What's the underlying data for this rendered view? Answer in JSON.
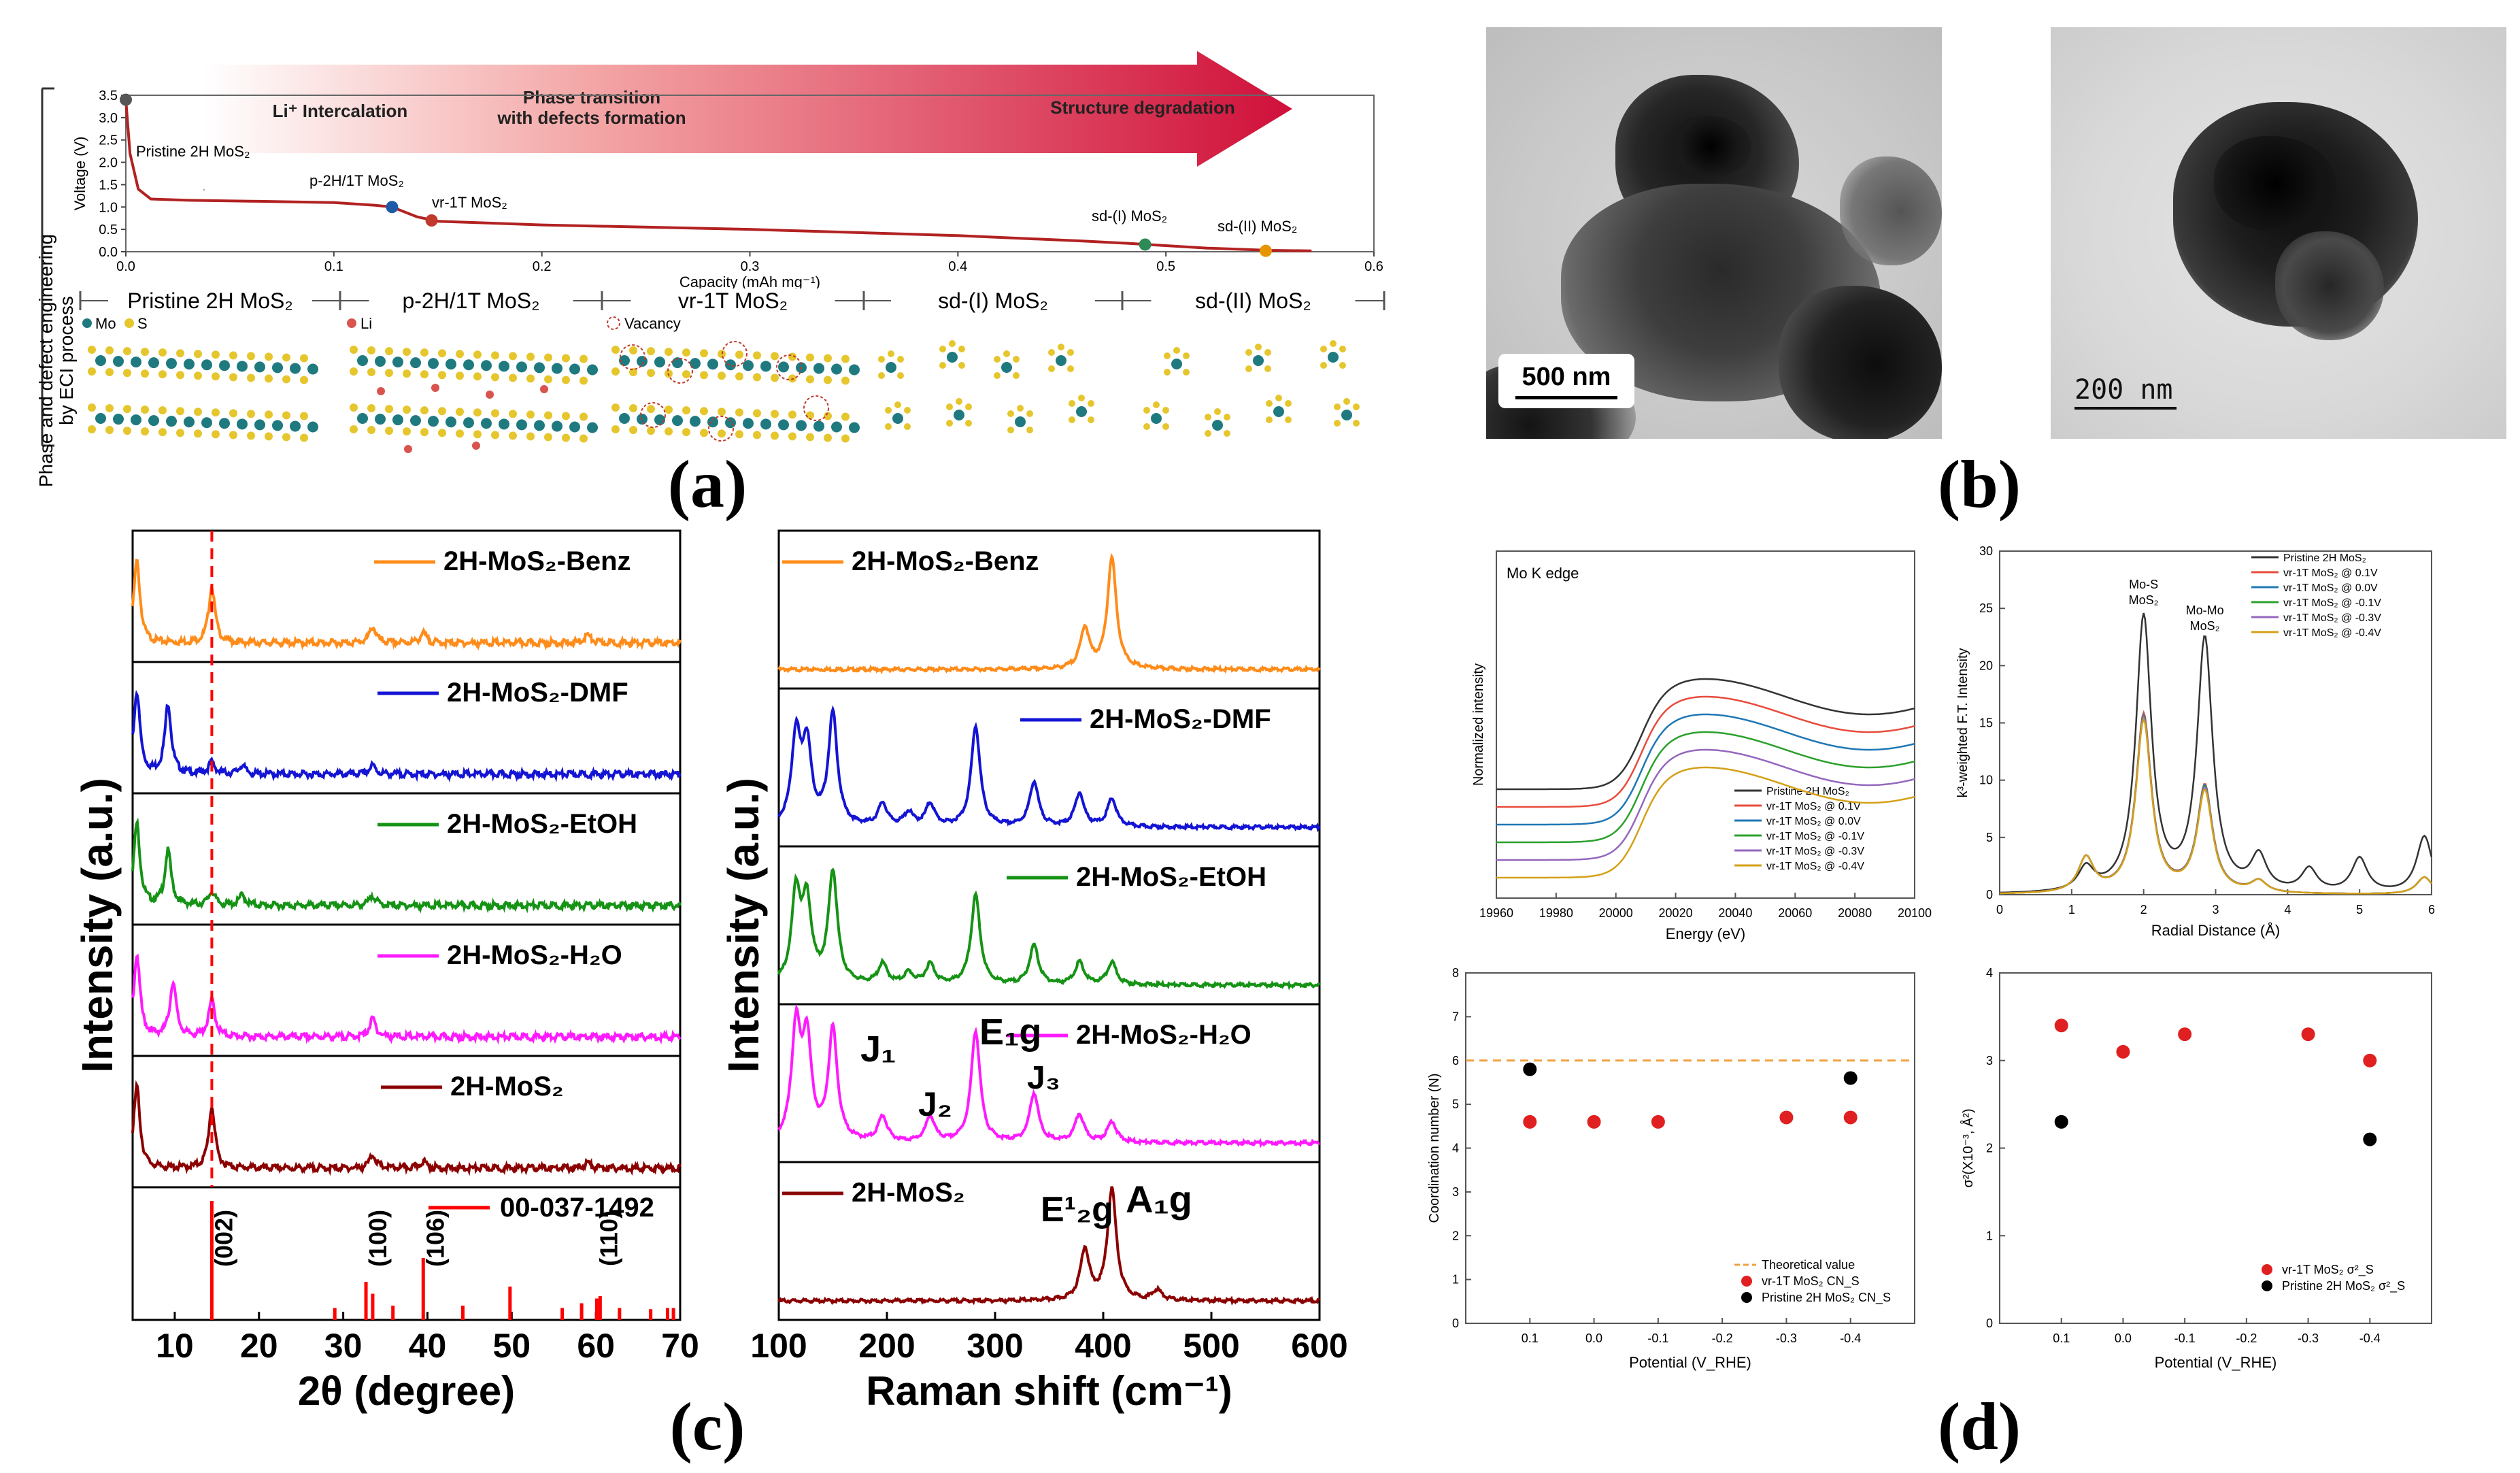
{
  "labels": {
    "a": "(a)",
    "b": "(b)",
    "c": "(c)",
    "d": "(d)"
  },
  "panel_a": {
    "side_label_1": "Phase and defect engineering",
    "side_label_2": "by ECI process",
    "arrow": {
      "stage1": "Li⁺ Intercalation",
      "stage2_l1": "Phase transition",
      "stage2_l2": "with defects formation",
      "stage3": "Structure degradation"
    },
    "annotations": {
      "pristine": "Pristine 2H MoS₂",
      "p2h1t": "p-2H/1T MoS₂",
      "vr1t": "vr-1T MoS₂",
      "sd1": "sd-(I) MoS₂",
      "sd2": "sd-(II) MoS₂"
    },
    "phases": [
      "Pristine 2H MoS₂",
      "p-2H/1T MoS₂",
      "vr-1T MoS₂",
      "sd-(I) MoS₂",
      "sd-(II) MoS₂"
    ],
    "legend": {
      "mo": "Mo",
      "s": "S",
      "li": "Li",
      "vac": "Vacancy"
    },
    "colors": {
      "mo": "#1f7a80",
      "s": "#e6c62d",
      "li": "#d9534f",
      "curve": "#b22222"
    }
  },
  "panel_b": {
    "scale1": "500 nm",
    "scale2": "200 nm"
  },
  "chart_data": [
    {
      "id": "voltage-profile",
      "type": "line",
      "xlabel": "Capacity (mAh mg⁻¹)",
      "ylabel": "Voltage (V)",
      "xlim": [
        0,
        0.6
      ],
      "ylim": [
        0,
        3.5
      ],
      "xticks": [
        "0.0",
        "0.1",
        "0.2",
        "0.3",
        "0.4",
        "0.5",
        "0.6"
      ],
      "yticks": [
        "0.0",
        "0.5",
        "1.0",
        "1.5",
        "2.0",
        "2.5",
        "3.0",
        "3.5"
      ],
      "series": [
        {
          "name": "voltage",
          "x": [
            0,
            0.002,
            0.006,
            0.012,
            0.03,
            0.06,
            0.1,
            0.12,
            0.128,
            0.14,
            0.15,
            0.2,
            0.3,
            0.4,
            0.46,
            0.485,
            0.52,
            0.55,
            0.57
          ],
          "y": [
            3.4,
            2.2,
            1.4,
            1.18,
            1.15,
            1.13,
            1.1,
            1.04,
            1.0,
            0.78,
            0.68,
            0.6,
            0.5,
            0.36,
            0.24,
            0.18,
            0.08,
            0.03,
            0.02
          ]
        }
      ],
      "markers": [
        {
          "x": 0.0,
          "y": 3.4,
          "color": "#555555"
        },
        {
          "x": 0.128,
          "y": 1.0,
          "color": "#1f5aa6"
        },
        {
          "x": 0.147,
          "y": 0.7,
          "color": "#c0392b"
        },
        {
          "x": 0.49,
          "y": 0.16,
          "color": "#2e8b57"
        },
        {
          "x": 0.548,
          "y": 0.02,
          "color": "#e69500"
        }
      ]
    },
    {
      "id": "xrd",
      "type": "line",
      "xlabel": "2θ (degree)",
      "ylabel": "Intensity (a.u.)",
      "xlim": [
        5,
        70
      ],
      "xticks": [
        "10",
        "20",
        "30",
        "40",
        "50",
        "60",
        "70"
      ],
      "dashed_line_at": 14.4,
      "series": [
        {
          "name": "2H-MoS₂-Benz",
          "color": "#ff8c1a",
          "peaks": [
            [
              5.5,
              10
            ],
            [
              14.4,
              7
            ],
            [
              33.5,
              2
            ],
            [
              39.5,
              1.2
            ],
            [
              59,
              1
            ]
          ]
        },
        {
          "name": "2H-MoS₂-DMF",
          "color": "#1414d4",
          "peaks": [
            [
              5.5,
              14
            ],
            [
              9.2,
              12
            ],
            [
              14.4,
              2
            ],
            [
              18,
              1.5
            ],
            [
              33.5,
              1.5
            ]
          ]
        },
        {
          "name": "2H-MoS₂-EtOH",
          "color": "#159315",
          "peaks": [
            [
              5.5,
              12
            ],
            [
              9.2,
              8
            ],
            [
              14.4,
              2
            ],
            [
              18,
              1.5
            ],
            [
              33.5,
              1.5
            ]
          ]
        },
        {
          "name": "2H-MoS₂-H₂O",
          "color": "#ff1aff",
          "peaks": [
            [
              5.5,
              9
            ],
            [
              9.8,
              6
            ],
            [
              14.4,
              4
            ],
            [
              33.5,
              2
            ]
          ]
        },
        {
          "name": "2H-MoS₂",
          "color": "#8b0000",
          "peaks": [
            [
              5.5,
              12
            ],
            [
              14.4,
              9
            ],
            [
              33.5,
              2
            ],
            [
              39.5,
              1
            ],
            [
              59,
              0.8
            ]
          ]
        }
      ],
      "reference": {
        "name": "00-037-1492",
        "color": "#ff0000",
        "x": [
          14.4,
          29,
          32.7,
          33.5,
          35.9,
          39.5,
          44.2,
          49.8,
          56,
          58.3,
          60.1,
          60.5,
          62.8,
          66.5,
          68.5,
          69.2
        ],
        "h": [
          1.0,
          0.1,
          0.32,
          0.22,
          0.12,
          0.52,
          0.12,
          0.28,
          0.1,
          0.14,
          0.18,
          0.2,
          0.1,
          0.09,
          0.1,
          0.1
        ],
        "hkl": [
          {
            "x": 14.4,
            "label": "(002)"
          },
          {
            "x": 32.7,
            "label": "(100)"
          },
          {
            "x": 39.5,
            "label": "(106)"
          },
          {
            "x": 60.1,
            "label": "(110)"
          }
        ]
      }
    },
    {
      "id": "raman",
      "type": "line",
      "xlabel": "Raman shift (cm⁻¹)",
      "ylabel": "Intensity (a.u.)",
      "xlim": [
        100,
        600
      ],
      "xticks": [
        "100",
        "200",
        "300",
        "400",
        "500",
        "600"
      ],
      "series": [
        {
          "name": "2H-MoS₂-Benz",
          "color": "#ff8c1a",
          "peaks": [
            [
              383,
              4
            ],
            [
              408,
              11
            ]
          ]
        },
        {
          "name": "2H-MoS₂-DMF",
          "color": "#1414d4",
          "peaks": [
            [
              116,
              8
            ],
            [
              126,
              7
            ],
            [
              150,
              10
            ],
            [
              196,
              2
            ],
            [
              220,
              1.2
            ],
            [
              240,
              2
            ],
            [
              282,
              9
            ],
            [
              336,
              4
            ],
            [
              378,
              3
            ],
            [
              408,
              2.5
            ]
          ]
        },
        {
          "name": "2H-MoS₂-EtOH",
          "color": "#159315",
          "peaks": [
            [
              116,
              8
            ],
            [
              126,
              7
            ],
            [
              150,
              10
            ],
            [
              196,
              1.8
            ],
            [
              220,
              1
            ],
            [
              240,
              1.8
            ],
            [
              282,
              8
            ],
            [
              336,
              3.5
            ],
            [
              378,
              2
            ],
            [
              408,
              2
            ]
          ]
        },
        {
          "name": "2H-MoS₂-H₂O",
          "color": "#ff1aff",
          "peaks": [
            [
              116,
              8
            ],
            [
              126,
              7
            ],
            [
              150,
              8
            ],
            [
              196,
              1.8
            ],
            [
              240,
              1.8
            ],
            [
              282,
              8
            ],
            [
              336,
              3.5
            ],
            [
              378,
              2
            ],
            [
              408,
              1.5
            ]
          ]
        },
        {
          "name": "2H-MoS₂",
          "color": "#8b0000",
          "peaks": [
            [
              383,
              5
            ],
            [
              408,
              11
            ],
            [
              450,
              1
            ]
          ]
        }
      ],
      "annotations": [
        "J₁",
        "J₂",
        "E₁g",
        "J₃",
        "E¹₂g",
        "A₁g"
      ]
    },
    {
      "id": "xanes",
      "type": "line",
      "title": "Mo K edge",
      "xlabel": "Energy (eV)",
      "ylabel": "Normalized intensity",
      "xlim": [
        19960,
        20100
      ],
      "xticks": [
        "19960",
        "19980",
        "20000",
        "20020",
        "20040",
        "20060",
        "20080",
        "20100"
      ],
      "legend": [
        {
          "name": "Pristine 2H MoS₂",
          "color": "#333333",
          "offset": 5
        },
        {
          "name": "vr-1T MoS₂ @ 0.1V",
          "color": "#e74c3c",
          "offset": 4
        },
        {
          "name": "vr-1T MoS₂ @ 0.0V",
          "color": "#1f77b4",
          "offset": 3
        },
        {
          "name": "vr-1T MoS₂ @ -0.1V",
          "color": "#2ca02c",
          "offset": 2
        },
        {
          "name": "vr-1T MoS₂ @ -0.3V",
          "color": "#9467bd",
          "offset": 1
        },
        {
          "name": "vr-1T MoS₂ @ -0.4V",
          "color": "#d4a017",
          "offset": 0
        }
      ]
    },
    {
      "id": "exafs",
      "type": "line",
      "xlabel": "Radial Distance (Å)",
      "ylabel": "k³-weighted F.T. Intensity",
      "xlim": [
        0,
        6
      ],
      "ylim": [
        0,
        30
      ],
      "xticks": [
        "0",
        "1",
        "2",
        "3",
        "4",
        "5",
        "6"
      ],
      "yticks": [
        "0",
        "5",
        "10",
        "15",
        "20",
        "25",
        "30"
      ],
      "annotations": [
        {
          "label1": "Mo-S",
          "label2": "MoS₂"
        },
        {
          "label1": "Mo-Mo",
          "label2": "MoS₂"
        }
      ],
      "series": [
        {
          "name": "Pristine 2H MoS₂",
          "color": "#333333",
          "peaks": [
            [
              1.2,
              2
            ],
            [
              2.0,
              24
            ],
            [
              2.85,
              22
            ],
            [
              3.6,
              3
            ],
            [
              4.3,
              2
            ],
            [
              5.0,
              3
            ],
            [
              5.9,
              5
            ]
          ]
        },
        {
          "name": "vr-1T MoS₂ @ 0.1V",
          "color": "#e74c3c",
          "peaks": [
            [
              1.2,
              3
            ],
            [
              2.0,
              15.6
            ],
            [
              2.85,
              9.3
            ],
            [
              3.6,
              1
            ],
            [
              5.9,
              1.5
            ]
          ]
        },
        {
          "name": "vr-1T MoS₂ @ 0.0V",
          "color": "#1f77b4",
          "peaks": [
            [
              1.2,
              3
            ],
            [
              2.0,
              15.4
            ],
            [
              2.85,
              9.2
            ],
            [
              3.6,
              1
            ],
            [
              5.9,
              1.5
            ]
          ]
        },
        {
          "name": "vr-1T MoS₂ @ -0.1V",
          "color": "#2ca02c",
          "peaks": [
            [
              1.2,
              3
            ],
            [
              2.0,
              15.3
            ],
            [
              2.85,
              9.1
            ],
            [
              3.6,
              1
            ],
            [
              5.9,
              1.5
            ]
          ]
        },
        {
          "name": "vr-1T MoS₂ @ -0.3V",
          "color": "#9467bd",
          "peaks": [
            [
              1.2,
              3
            ],
            [
              2.0,
              15.2
            ],
            [
              2.85,
              9.0
            ],
            [
              3.6,
              1
            ],
            [
              5.9,
              1.5
            ]
          ]
        },
        {
          "name": "vr-1T MoS₂ @ -0.4V",
          "color": "#d4a017",
          "peaks": [
            [
              1.2,
              3
            ],
            [
              2.0,
              15.0
            ],
            [
              2.85,
              8.8
            ],
            [
              3.6,
              1
            ],
            [
              5.9,
              1.5
            ]
          ]
        }
      ]
    },
    {
      "id": "coordination",
      "type": "scatter",
      "xlabel": "Potential (V_RHE)",
      "ylabel": "Coordination number (N)",
      "ylim": [
        0,
        8
      ],
      "xticks": [
        "0.1",
        "0.0",
        "-0.1",
        "-0.2",
        "-0.3",
        "-0.4"
      ],
      "yticks": [
        "0",
        "1",
        "2",
        "3",
        "4",
        "5",
        "6",
        "7",
        "8"
      ],
      "theoretical": 6,
      "legend": [
        "Theoretical value",
        "vr-1T MoS₂ CN_S",
        "Pristine 2H MoS₂ CN_S"
      ],
      "series": [
        {
          "name": "vr-1T MoS₂ CN_S",
          "color": "#e02020",
          "points": [
            [
              0.1,
              4.6
            ],
            [
              0.0,
              4.6
            ],
            [
              -0.1,
              4.6
            ],
            [
              -0.3,
              4.7
            ],
            [
              -0.4,
              4.7
            ]
          ]
        },
        {
          "name": "Pristine 2H MoS₂ CN_S",
          "color": "#000000",
          "points": [
            [
              0.1,
              5.8
            ],
            [
              -0.4,
              5.6
            ]
          ]
        }
      ]
    },
    {
      "id": "debye-waller",
      "type": "scatter",
      "xlabel": "Potential (V_RHE)",
      "ylabel": "σ²(X10⁻³, Å²)",
      "ylim": [
        0,
        4
      ],
      "xticks": [
        "0.1",
        "0.0",
        "-0.1",
        "-0.2",
        "-0.3",
        "-0.4"
      ],
      "yticks": [
        "0",
        "1",
        "2",
        "3",
        "4"
      ],
      "legend": [
        "vr-1T MoS₂ σ²_S",
        "Pristine 2H MoS₂ σ²_S"
      ],
      "series": [
        {
          "name": "vr-1T MoS₂ σ²_S",
          "color": "#e02020",
          "points": [
            [
              0.1,
              3.4
            ],
            [
              0.0,
              3.1
            ],
            [
              -0.1,
              3.3
            ],
            [
              -0.3,
              3.3
            ],
            [
              -0.4,
              3.0
            ]
          ]
        },
        {
          "name": "Pristine 2H MoS₂ σ²_S",
          "color": "#000000",
          "points": [
            [
              0.1,
              2.3
            ],
            [
              -0.4,
              2.1
            ]
          ]
        }
      ]
    }
  ]
}
